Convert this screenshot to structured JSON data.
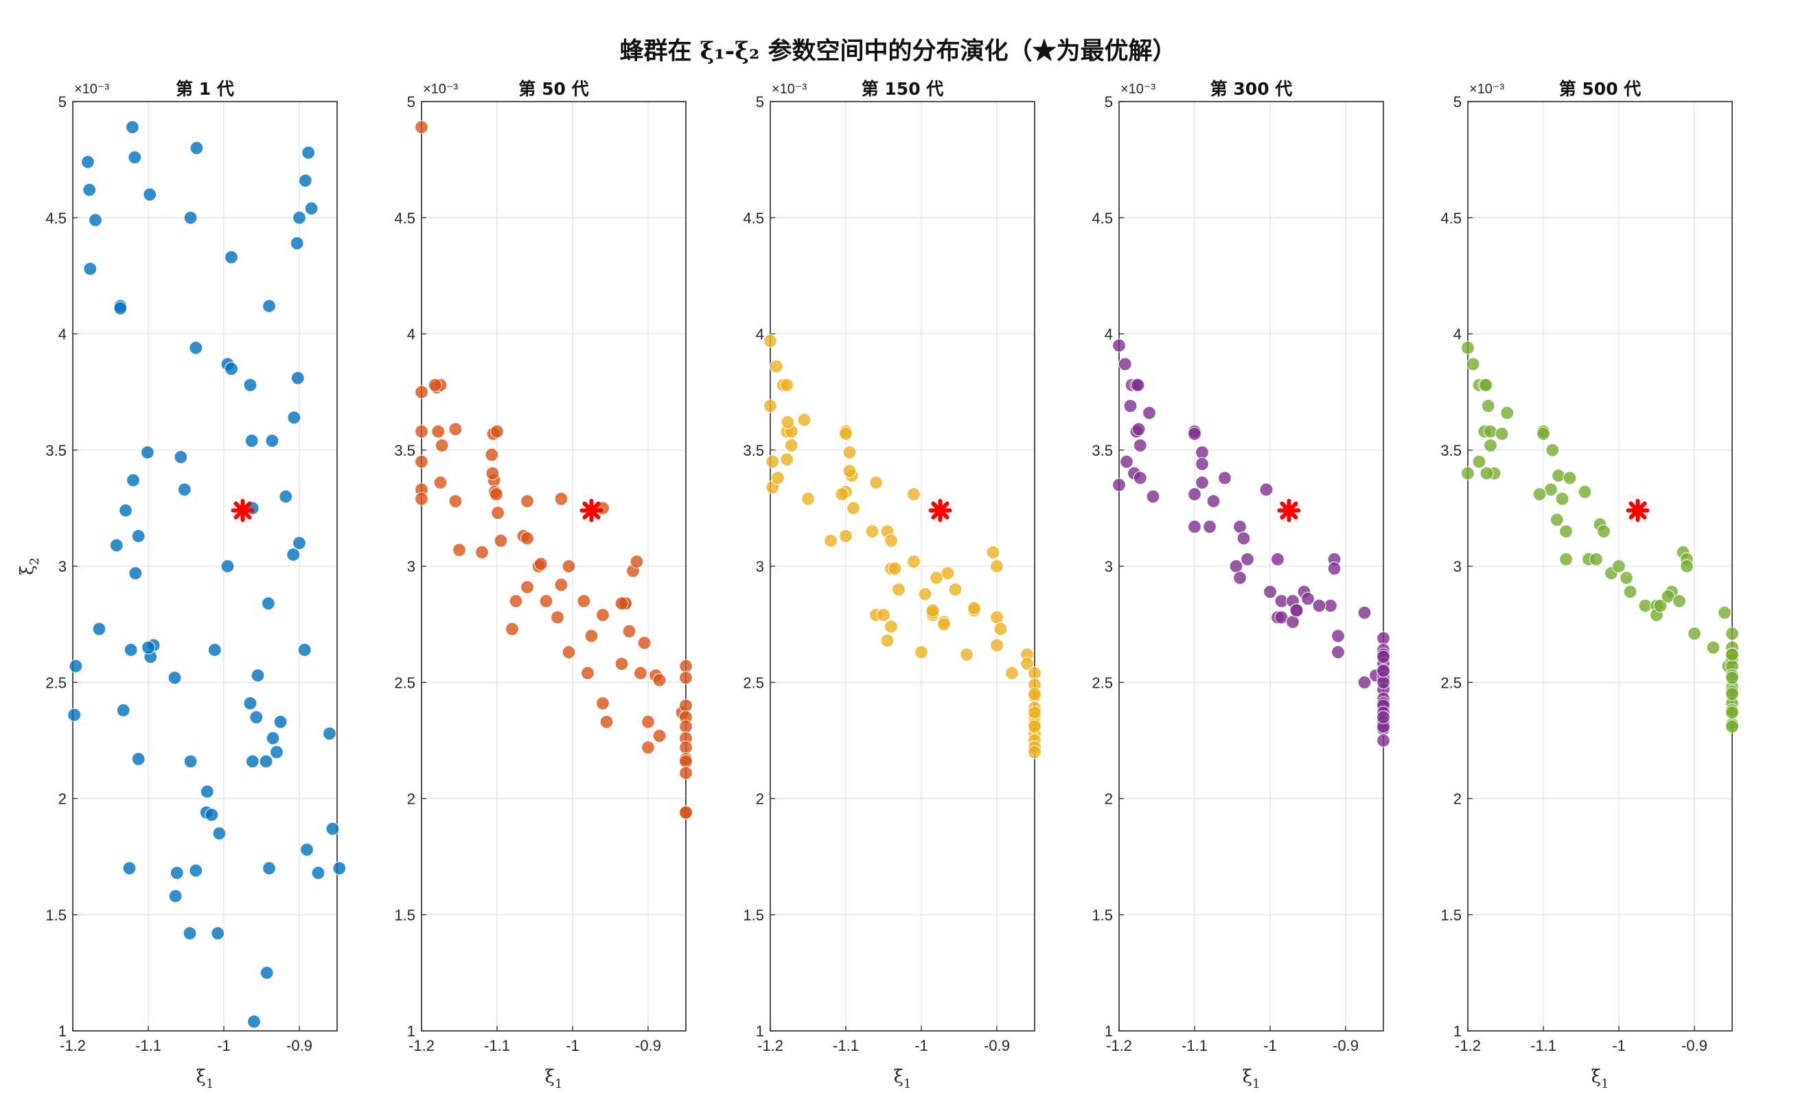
{
  "title": "蜂群在 ξ₁-ξ₂ 参数空间中的分布演化（★为最优解）",
  "chart_data": [
    {
      "type": "scatter",
      "title": "第 1 代",
      "xlabel": "ξ1",
      "ylabel": "ξ2",
      "xlim": [
        -1.2,
        -0.85
      ],
      "ylim": [
        0.001,
        0.005
      ],
      "y_exponent": "×10⁻³",
      "xticks": [
        "-1.2",
        "-1.1",
        "-1",
        "-0.9"
      ],
      "yticks": [
        "1",
        "1.5",
        "2",
        "2.5",
        "3",
        "3.5",
        "4",
        "4.5",
        "5"
      ],
      "color": "#0072BD",
      "best": {
        "x": -0.975,
        "y": 0.00324
      },
      "points": {
        "x": [
          -1.18,
          -1.178,
          -1.17,
          -1.177,
          -1.118,
          -1.121,
          -1.098,
          -1.036,
          -1.044,
          -0.888,
          -0.892,
          -0.884,
          -0.9,
          -0.903,
          -0.99,
          -0.94,
          -1.137,
          -1.137,
          -1.037,
          -0.995,
          -0.99,
          -0.965,
          -0.902,
          -0.963,
          -0.936,
          -0.907,
          -1.101,
          -1.057,
          -1.052,
          -1.12,
          -1.13,
          -1.113,
          -0.962,
          -0.918,
          -0.9,
          -0.908,
          -1.142,
          -1.117,
          -0.995,
          -0.941,
          -1.165,
          -1.093,
          -1.123,
          -1.097,
          -1.1,
          -1.012,
          -0.893,
          -1.196,
          -1.065,
          -0.955,
          -1.198,
          -1.133,
          -0.965,
          -0.957,
          -0.86,
          -0.925,
          -0.935,
          -0.93,
          -1.113,
          -0.962,
          -0.944,
          -1.044,
          -1.022,
          -1.023,
          -1.016,
          -1.006,
          -0.856,
          -1.125,
          -1.062,
          -1.037,
          -0.94,
          -0.89,
          -0.875,
          -0.847,
          -1.064,
          -1.045,
          -1.008,
          -0.943,
          -0.96
        ],
        "y": [
          0.00474,
          0.00462,
          0.00449,
          0.00428,
          0.00476,
          0.00489,
          0.0046,
          0.0048,
          0.0045,
          0.00478,
          0.00466,
          0.00454,
          0.0045,
          0.00439,
          0.00433,
          0.00412,
          0.00412,
          0.00411,
          0.00394,
          0.00387,
          0.00385,
          0.00378,
          0.00381,
          0.00354,
          0.00354,
          0.00364,
          0.00349,
          0.00347,
          0.00333,
          0.00337,
          0.00324,
          0.00313,
          0.00325,
          0.0033,
          0.0031,
          0.00305,
          0.00309,
          0.00297,
          0.003,
          0.00284,
          0.00273,
          0.00266,
          0.00264,
          0.00261,
          0.00265,
          0.00264,
          0.00264,
          0.00257,
          0.00252,
          0.00253,
          0.00236,
          0.00238,
          0.00241,
          0.00235,
          0.00228,
          0.00233,
          0.00226,
          0.0022,
          0.00217,
          0.00216,
          0.00216,
          0.00216,
          0.00203,
          0.00194,
          0.00193,
          0.00185,
          0.00187,
          0.0017,
          0.00168,
          0.00169,
          0.0017,
          0.00178,
          0.00168,
          0.0017,
          0.00158,
          0.00142,
          0.00142,
          0.00125,
          0.00104
        ]
      }
    },
    {
      "type": "scatter",
      "title": "第 50 代",
      "xlabel": "ξ1",
      "ylabel": "",
      "xlim": [
        -1.2,
        -0.85
      ],
      "ylim": [
        0.001,
        0.005
      ],
      "y_exponent": "×10⁻³",
      "xticks": [
        "-1.2",
        "-1.1",
        "-1",
        "-0.9"
      ],
      "yticks": [
        "1",
        "1.5",
        "2",
        "2.5",
        "3",
        "3.5",
        "4",
        "4.5",
        "5"
      ],
      "color": "#D95319",
      "best": {
        "x": -0.975,
        "y": 0.00324
      },
      "points": {
        "x": [
          -1.2,
          -1.2,
          -1.18,
          -1.175,
          -1.182,
          -1.2,
          -1.178,
          -1.155,
          -1.2,
          -1.173,
          -1.2,
          -1.2,
          -1.175,
          -1.155,
          -1.105,
          -1.1,
          -1.107,
          -1.104,
          -1.106,
          -1.103,
          -1.101,
          -1.099,
          -1.06,
          -1.015,
          -0.96,
          -1.095,
          -1.065,
          -1.06,
          -1.15,
          -1.12,
          -1.045,
          -1.042,
          -1.06,
          -1.005,
          -1.015,
          -0.92,
          -0.915,
          -1.075,
          -1.035,
          -1.02,
          -0.985,
          -0.975,
          -0.96,
          -0.93,
          -0.93,
          -0.935,
          -0.925,
          -0.905,
          -1.08,
          -1.005,
          -0.98,
          -0.96,
          -0.91,
          -0.935,
          -0.89,
          -0.885,
          -0.955,
          -0.9,
          -0.885,
          -0.9,
          -0.855,
          -0.85,
          -0.85,
          -0.85,
          -0.85,
          -0.85,
          -0.85,
          -0.85,
          -0.85,
          -0.85,
          -0.85,
          -0.85,
          -0.85
        ],
        "y": [
          0.00489,
          0.00375,
          0.00377,
          0.00378,
          0.00378,
          0.00358,
          0.00358,
          0.00359,
          0.00345,
          0.00352,
          0.00333,
          0.00329,
          0.00336,
          0.00328,
          0.00357,
          0.00358,
          0.00348,
          0.00337,
          0.0034,
          0.00332,
          0.00331,
          0.00323,
          0.00328,
          0.00329,
          0.00325,
          0.00311,
          0.00313,
          0.00312,
          0.00307,
          0.00306,
          0.003,
          0.00301,
          0.00291,
          0.003,
          0.00292,
          0.00298,
          0.00302,
          0.00285,
          0.00285,
          0.00278,
          0.00285,
          0.0027,
          0.00279,
          0.00284,
          0.00284,
          0.00284,
          0.00272,
          0.00267,
          0.00273,
          0.00263,
          0.00254,
          0.00241,
          0.00254,
          0.00258,
          0.00253,
          0.00251,
          0.00233,
          0.00233,
          0.00227,
          0.00222,
          0.00237,
          0.00257,
          0.00252,
          0.0024,
          0.00235,
          0.00231,
          0.00226,
          0.00222,
          0.00217,
          0.00216,
          0.00211,
          0.00194,
          0.00194
        ]
      }
    },
    {
      "type": "scatter",
      "title": "第 150 代",
      "xlabel": "ξ1",
      "ylabel": "",
      "xlim": [
        -1.2,
        -0.85
      ],
      "ylim": [
        0.001,
        0.005
      ],
      "y_exponent": "×10⁻³",
      "xticks": [
        "-1.2",
        "-1.1",
        "-1",
        "-0.9"
      ],
      "yticks": [
        "1",
        "1.5",
        "2",
        "2.5",
        "3",
        "3.5",
        "4",
        "4.5",
        "5"
      ],
      "color": "#EDB120",
      "best": {
        "x": -0.975,
        "y": 0.00324
      },
      "points": {
        "x": [
          -1.2,
          -1.192,
          -1.183,
          -1.178,
          -1.2,
          -1.178,
          -1.172,
          -1.177,
          -1.197,
          -1.178,
          -1.155,
          -1.172,
          -1.197,
          -1.19,
          -1.15,
          -1.1,
          -1.1,
          -1.095,
          -1.092,
          -1.095,
          -1.1,
          -1.105,
          -1.09,
          -1.06,
          -1.01,
          -1.065,
          -1.045,
          -1.04,
          -1.12,
          -1.1,
          -1.04,
          -1.035,
          -1.01,
          -0.98,
          -1.03,
          -0.965,
          -0.955,
          -1.06,
          -1.05,
          -1.04,
          -0.995,
          -0.985,
          -0.985,
          -0.97,
          -0.93,
          -0.93,
          -0.905,
          -0.9,
          -1.045,
          -1.0,
          -0.985,
          -0.97,
          -0.94,
          -0.9,
          -0.9,
          -0.895,
          -0.88,
          -0.86,
          -0.86,
          -0.85,
          -0.85,
          -0.85,
          -0.85,
          -0.85,
          -0.85,
          -0.85,
          -0.85,
          -0.85,
          -0.85,
          -0.85,
          -0.85,
          -0.85
        ],
        "y": [
          0.00397,
          0.00386,
          0.00378,
          0.00378,
          0.00369,
          0.00358,
          0.00358,
          0.00362,
          0.00345,
          0.00346,
          0.00363,
          0.00352,
          0.00334,
          0.00338,
          0.00329,
          0.00358,
          0.00357,
          0.00349,
          0.00339,
          0.00341,
          0.00332,
          0.00331,
          0.00325,
          0.00336,
          0.00331,
          0.00315,
          0.00315,
          0.00311,
          0.00311,
          0.00313,
          0.00299,
          0.00299,
          0.00302,
          0.00295,
          0.0029,
          0.00297,
          0.0029,
          0.00279,
          0.00279,
          0.00274,
          0.00288,
          0.00279,
          0.0028,
          0.00276,
          0.00281,
          0.00282,
          0.00306,
          0.003,
          0.00268,
          0.00263,
          0.00281,
          0.00275,
          0.00262,
          0.00266,
          0.00278,
          0.00273,
          0.00254,
          0.00262,
          0.00258,
          0.00254,
          0.00249,
          0.00244,
          0.00239,
          0.00235,
          0.00232,
          0.00228,
          0.00225,
          0.00222,
          0.00231,
          0.00237,
          0.00245,
          0.0022
        ]
      }
    },
    {
      "type": "scatter",
      "title": "第 300 代",
      "xlabel": "ξ1",
      "ylabel": "",
      "xlim": [
        -1.2,
        -0.85
      ],
      "ylim": [
        0.001,
        0.005
      ],
      "y_exponent": "×10⁻³",
      "xticks": [
        "-1.2",
        "-1.1",
        "-1",
        "-0.9"
      ],
      "yticks": [
        "1",
        "1.5",
        "2",
        "2.5",
        "3",
        "3.5",
        "4",
        "4.5",
        "5"
      ],
      "color": "#7E2F8E",
      "best": {
        "x": -0.975,
        "y": 0.00324
      },
      "points": {
        "x": [
          -1.2,
          -1.192,
          -1.183,
          -1.177,
          -1.175,
          -1.185,
          -1.177,
          -1.174,
          -1.172,
          -1.19,
          -1.18,
          -1.172,
          -1.2,
          -1.16,
          -1.155,
          -1.1,
          -1.1,
          -1.09,
          -1.09,
          -1.09,
          -1.1,
          -1.06,
          -1.075,
          -1.005,
          -1.1,
          -1.08,
          -1.04,
          -1.035,
          -1.045,
          -1.03,
          -1.04,
          -0.99,
          -1.0,
          -0.985,
          -0.97,
          -0.955,
          -0.95,
          -0.92,
          -0.935,
          -0.915,
          -0.915,
          -0.965,
          -0.99,
          -0.985,
          -0.97,
          -0.965,
          -0.91,
          -0.91,
          -0.875,
          -0.86,
          -0.875,
          -0.85,
          -0.85,
          -0.85,
          -0.85,
          -0.85,
          -0.85,
          -0.85,
          -0.85,
          -0.85,
          -0.85,
          -0.85,
          -0.85,
          -0.85,
          -0.85,
          -0.85,
          -0.85,
          -0.85,
          -0.85,
          -0.85
        ],
        "y": [
          0.00395,
          0.00387,
          0.00378,
          0.00378,
          0.00378,
          0.00369,
          0.00358,
          0.00359,
          0.00352,
          0.00345,
          0.0034,
          0.00338,
          0.00335,
          0.00366,
          0.0033,
          0.00358,
          0.00357,
          0.00349,
          0.00336,
          0.00344,
          0.00331,
          0.00338,
          0.00328,
          0.00333,
          0.00317,
          0.00317,
          0.00317,
          0.00312,
          0.003,
          0.00303,
          0.00295,
          0.00303,
          0.00289,
          0.00285,
          0.00285,
          0.00289,
          0.00286,
          0.00283,
          0.00283,
          0.00303,
          0.00299,
          0.00281,
          0.00278,
          0.00278,
          0.00276,
          0.00281,
          0.0027,
          0.00263,
          0.0028,
          0.00253,
          0.0025,
          0.00269,
          0.00264,
          0.00262,
          0.00258,
          0.00255,
          0.00252,
          0.00247,
          0.00243,
          0.00241,
          0.0024,
          0.00237,
          0.00233,
          0.0023,
          0.00225,
          0.0025,
          0.00261,
          0.00255,
          0.00231,
          0.00235
        ]
      }
    },
    {
      "type": "scatter",
      "title": "第 500 代",
      "xlabel": "ξ1",
      "ylabel": "",
      "xlim": [
        -1.2,
        -0.85
      ],
      "ylim": [
        0.001,
        0.005
      ],
      "y_exponent": "×10⁻³",
      "xticks": [
        "-1.2",
        "-1.1",
        "-1",
        "-0.9"
      ],
      "yticks": [
        "1",
        "1.5",
        "2",
        "2.5",
        "3",
        "3.5",
        "4",
        "4.5",
        "5"
      ],
      "color": "#77AC30",
      "best": {
        "x": -0.975,
        "y": 0.00324
      },
      "points": {
        "x": [
          -1.2,
          -1.193,
          -1.185,
          -1.178,
          -1.176,
          -1.173,
          -1.178,
          -1.17,
          -1.17,
          -1.185,
          -1.165,
          -1.2,
          -1.175,
          -1.148,
          -1.155,
          -1.1,
          -1.1,
          -1.088,
          -1.08,
          -1.09,
          -1.105,
          -1.075,
          -1.065,
          -1.045,
          -1.082,
          -1.07,
          -1.07,
          -1.025,
          -1.02,
          -1.04,
          -1.01,
          -1.0,
          -1.03,
          -0.99,
          -0.985,
          -0.965,
          -0.95,
          -0.95,
          -0.945,
          -0.93,
          -0.935,
          -0.92,
          -0.915,
          -0.91,
          -0.91,
          -0.9,
          -0.875,
          -0.86,
          -0.855,
          -0.85,
          -0.85,
          -0.85,
          -0.85,
          -0.85,
          -0.85,
          -0.85,
          -0.85,
          -0.85,
          -0.85,
          -0.85,
          -0.85,
          -0.85,
          -0.85,
          -0.85,
          -0.85
        ],
        "y": [
          0.00394,
          0.00387,
          0.00378,
          0.00378,
          0.00378,
          0.00369,
          0.00358,
          0.00358,
          0.00352,
          0.00345,
          0.0034,
          0.0034,
          0.0034,
          0.00366,
          0.00357,
          0.00358,
          0.00357,
          0.0035,
          0.00339,
          0.00333,
          0.00331,
          0.00329,
          0.00338,
          0.00332,
          0.0032,
          0.00315,
          0.00303,
          0.00318,
          0.00315,
          0.00303,
          0.00297,
          0.003,
          0.00303,
          0.00295,
          0.00289,
          0.00283,
          0.00283,
          0.00279,
          0.00283,
          0.00289,
          0.00287,
          0.00285,
          0.00306,
          0.00303,
          0.003,
          0.00271,
          0.00265,
          0.0028,
          0.00257,
          0.00271,
          0.00265,
          0.00262,
          0.0026,
          0.00257,
          0.00253,
          0.00248,
          0.00246,
          0.00241,
          0.00238,
          0.00232,
          0.00231,
          0.00252,
          0.00262,
          0.00245,
          0.00237
        ]
      }
    }
  ]
}
